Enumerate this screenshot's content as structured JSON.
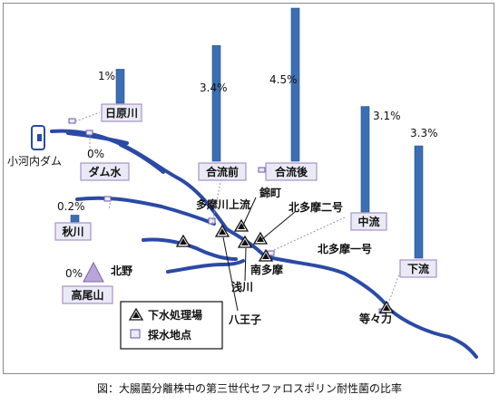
{
  "caption": "図：大腸菌分離株中の第三世代セファロスポリン耐性菌の比率",
  "colors": {
    "river": "#2b4aa6",
    "bar": "#3c6eb4",
    "bar_edge": "#24508e",
    "label_box_fill": "#eaeaf6",
    "label_box_border": "#a991c6",
    "sampling_point": "#6a54a8",
    "mountain_fill": "#b9a6d7"
  },
  "sites": [
    {
      "key": "hinohara",
      "label": "日原川",
      "percent_text": "1%",
      "percent": 1.0
    },
    {
      "key": "damsui",
      "label": "ダム水",
      "percent_text": "0%",
      "percent": 0.0
    },
    {
      "key": "akigawa",
      "label": "秋川",
      "percent_text": "0.2%",
      "percent": 0.2
    },
    {
      "key": "takao",
      "label": "高尾山",
      "percent_text": "0%",
      "percent": 0.0
    },
    {
      "key": "goryu_mae",
      "label": "合流前",
      "percent_text": "3.4%",
      "percent": 3.4
    },
    {
      "key": "goryu_go",
      "label": "合流後",
      "percent_text": "4.5%",
      "percent": 4.5
    },
    {
      "key": "churyu",
      "label": "中流",
      "percent_text": "3.1%",
      "percent": 3.1
    },
    {
      "key": "karyu",
      "label": "下流",
      "percent_text": "3.3%",
      "percent": 3.3
    }
  ],
  "place_names": {
    "ogochi": "小河内ダム",
    "tamagawa_joryu": "多摩川上流",
    "nishikicho": "錦町",
    "kitatama2": "北多摩二号",
    "kitatama1": "北多摩一号",
    "kitano": "北野",
    "minamitama": "南多摩",
    "asakawa": "浅川",
    "hachioji": "八王子",
    "todoroki": "等々力"
  },
  "legend": {
    "treatment_plant": "下水処理場",
    "sampling_point": "採水地点"
  }
}
